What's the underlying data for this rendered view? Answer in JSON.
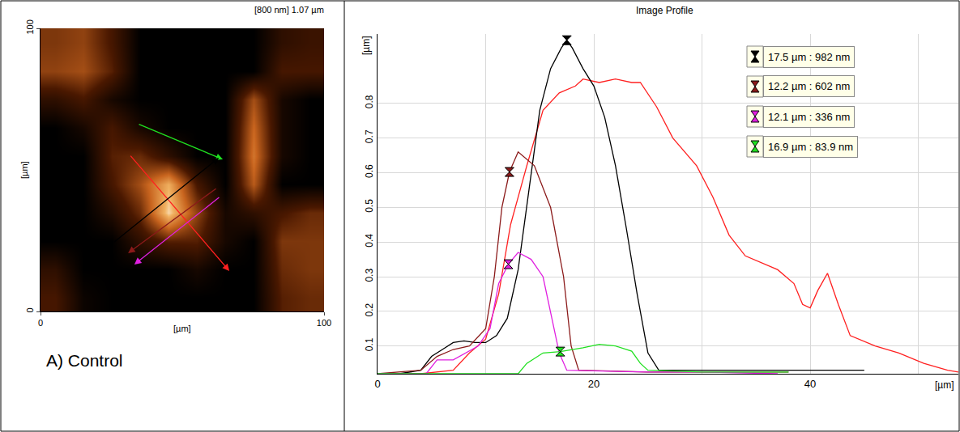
{
  "chart_data": [
    {
      "type": "heatmap",
      "title": "[800 nm] 1.07 µm",
      "caption": "A) Control",
      "xlabel": "[µm]",
      "ylabel": "[µm]",
      "xlim": [
        0,
        100
      ],
      "ylim": [
        0,
        100
      ],
      "xticks": [
        0,
        100
      ],
      "yticks": [
        0,
        100
      ],
      "zlim": [
        0,
        1.07
      ],
      "x": [
        5,
        15,
        25,
        35,
        45,
        55,
        65,
        75,
        85,
        95
      ],
      "y": [
        5,
        15,
        25,
        35,
        45,
        55,
        65,
        75,
        85,
        95
      ],
      "z": [
        [
          0.3,
          0.05,
          0,
          0,
          0,
          0,
          0,
          0,
          0.35,
          0.4
        ],
        [
          0.2,
          0,
          0,
          0,
          0,
          0.1,
          0,
          0,
          0.4,
          0.45
        ],
        [
          0,
          0,
          0,
          0.2,
          0.35,
          0.35,
          0.1,
          0,
          0.45,
          0.45
        ],
        [
          0,
          0,
          0.15,
          0.4,
          1.0,
          0.5,
          0.1,
          0.2,
          0.3,
          0.4
        ],
        [
          0,
          0,
          0.3,
          0.55,
          0.9,
          0.3,
          0,
          0.6,
          0,
          0
        ],
        [
          0,
          0,
          0.35,
          0.4,
          0.2,
          0,
          0,
          0.7,
          0.1,
          0
        ],
        [
          0,
          0.1,
          0.3,
          0.1,
          0,
          0,
          0,
          0.65,
          0.1,
          0
        ],
        [
          0.2,
          0.3,
          0.1,
          0,
          0,
          0,
          0,
          0.55,
          0.1,
          0
        ],
        [
          0.5,
          0.55,
          0.35,
          0,
          0,
          0,
          0,
          0,
          0.3,
          0.3
        ],
        [
          0.45,
          0.5,
          0.3,
          0,
          0,
          0,
          0,
          0,
          0.2,
          0.25
        ]
      ],
      "profile_lines": [
        {
          "color": "#20e020",
          "x0": 34.3,
          "y0": 66.3,
          "x1": 64.3,
          "y1": 53.7
        },
        {
          "color": "#ff2020",
          "x0": 31.4,
          "y0": 55.4,
          "x1": 66.6,
          "y1": 14.3
        },
        {
          "color": "#8b1a1a",
          "x0": 62.3,
          "y0": 43.7,
          "x1": 30.9,
          "y1": 20.6
        },
        {
          "color": "#e020e0",
          "x0": 63.4,
          "y0": 40.6,
          "x1": 33.1,
          "y1": 16.6
        },
        {
          "color": "#000000",
          "x0": 25.7,
          "y0": 24.3,
          "x1": 62.9,
          "y1": 54.3
        }
      ],
      "tick_labels": true
    },
    {
      "type": "line",
      "title": "Image Profile",
      "xlabel": "[µm]",
      "ylabel": "[µm]",
      "xlim": [
        0,
        53.7
      ],
      "ylim": [
        0.02,
        1.0
      ],
      "xticks": [
        0,
        20,
        40
      ],
      "yticks": [
        0.1,
        0.2,
        0.3,
        0.4,
        0.5,
        0.6,
        0.7,
        0.8
      ],
      "grid": true,
      "series": [
        {
          "color": "#ff2020",
          "x": [
            0,
            4,
            7,
            8.5,
            10,
            11.2,
            12.3,
            13.8,
            15.3,
            16.8,
            18.3,
            19,
            20.5,
            22,
            23.5,
            24.3,
            25.8,
            27.3,
            29.5,
            31,
            32.5,
            34,
            37,
            38.5,
            39.3,
            40,
            40.7,
            41.6,
            42.6,
            43.7,
            46,
            48.2,
            50.5,
            52.7,
            53.7
          ],
          "values": [
            0.02,
            0.02,
            0.03,
            0.08,
            0.12,
            0.25,
            0.45,
            0.62,
            0.78,
            0.83,
            0.85,
            0.87,
            0.86,
            0.87,
            0.86,
            0.86,
            0.79,
            0.7,
            0.62,
            0.53,
            0.42,
            0.36,
            0.32,
            0.28,
            0.22,
            0.21,
            0.26,
            0.31,
            0.22,
            0.13,
            0.1,
            0.08,
            0.05,
            0.03,
            0.025
          ]
        },
        {
          "color": "#000000",
          "marker": "hourglass",
          "x": [
            0,
            2,
            4,
            5,
            6,
            7,
            8,
            9,
            10,
            11,
            12,
            13,
            14,
            15,
            16,
            17,
            17.5,
            18,
            19,
            20,
            21,
            22,
            23,
            24,
            25,
            26,
            30,
            35,
            40,
            45
          ],
          "values": [
            0.02,
            0.02,
            0.03,
            0.07,
            0.09,
            0.11,
            0.115,
            0.11,
            0.11,
            0.13,
            0.18,
            0.32,
            0.55,
            0.78,
            0.9,
            0.96,
            0.982,
            0.96,
            0.9,
            0.85,
            0.76,
            0.62,
            0.44,
            0.25,
            0.08,
            0.03,
            0.03,
            0.03,
            0.03,
            0.03
          ],
          "marker_point": {
            "x": 17.5,
            "y": 0.982,
            "label": "17.5 µm : 982 nm"
          }
        },
        {
          "color": "#8b1a1a",
          "marker": "hourglass",
          "x": [
            0,
            4,
            5.5,
            7,
            8.5,
            10,
            10.8,
            11.5,
            12.2,
            13,
            14.5,
            16,
            17.2,
            17.9,
            18.6,
            25,
            30,
            38
          ],
          "values": [
            0.02,
            0.03,
            0.07,
            0.09,
            0.1,
            0.15,
            0.3,
            0.5,
            0.602,
            0.66,
            0.62,
            0.5,
            0.3,
            0.1,
            0.03,
            0.025,
            0.025,
            0.025
          ],
          "marker_point": {
            "x": 12.2,
            "y": 0.602,
            "label": "12.2 µm : 602 nm"
          }
        },
        {
          "color": "#e020e0",
          "marker": "hourglass",
          "x": [
            0,
            4.5,
            5.5,
            7,
            9.3,
            10.4,
            11.2,
            12.1,
            13,
            14.2,
            15.3,
            16,
            16.8,
            17.5,
            25,
            30,
            37
          ],
          "values": [
            0.02,
            0.02,
            0.06,
            0.06,
            0.1,
            0.15,
            0.28,
            0.336,
            0.37,
            0.35,
            0.3,
            0.2,
            0.08,
            0.03,
            0.025,
            0.025,
            0.02
          ],
          "marker_point": {
            "x": 12.1,
            "y": 0.336,
            "label": "12.1 µm : 336 nm"
          }
        },
        {
          "color": "#20e020",
          "marker": "hourglass",
          "x": [
            0,
            13,
            13.8,
            15.3,
            16.9,
            19,
            20.5,
            22,
            23.5,
            24.3,
            25,
            30,
            38
          ],
          "values": [
            0.02,
            0.02,
            0.05,
            0.08,
            0.0839,
            0.095,
            0.105,
            0.1,
            0.085,
            0.05,
            0.03,
            0.025,
            0.025
          ],
          "marker_point": {
            "x": 16.9,
            "y": 0.0839,
            "label": "16.9 µm : 83.9 nm"
          }
        }
      ]
    }
  ]
}
